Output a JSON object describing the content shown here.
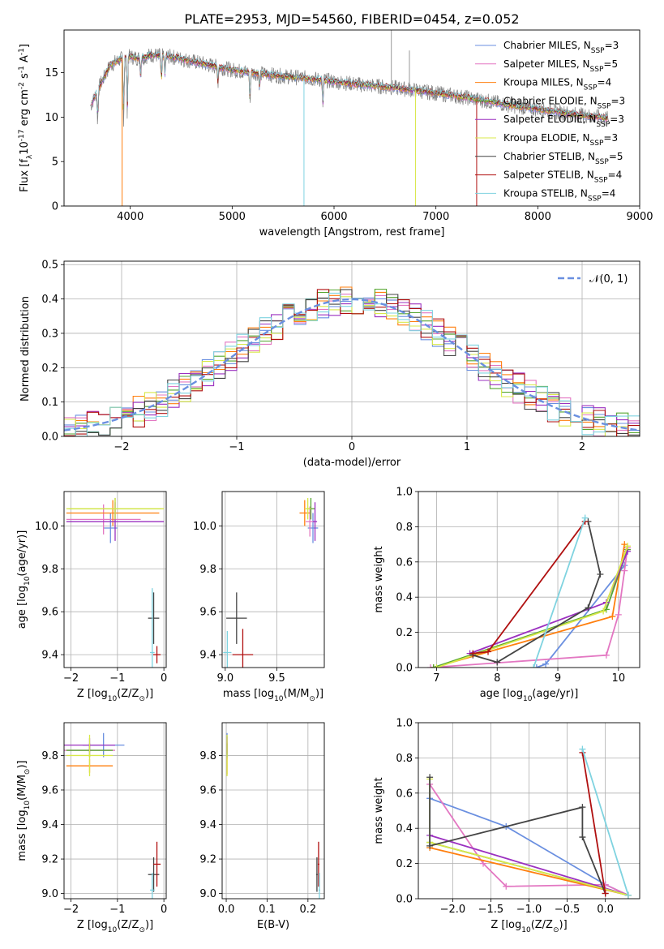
{
  "figure_title": "PLATE=2953, MJD=54560, FIBERID=0454, z=0.052",
  "colors": {
    "chabrier_miles": "#6a8fe0",
    "salpeter_miles": "#e377c2",
    "kroupa_miles": "#ff7f0e",
    "chabrier_elodie": "#55a630",
    "salpeter_elodie": "#9b30c0",
    "kroupa_elodie": "#d8e84a",
    "chabrier_stelib": "#444444",
    "salpeter_stelib": "#b01010",
    "kroupa_stelib": "#7fd3e0",
    "normal_curve": "#6a8fe0",
    "grid": "#b0b0b0"
  },
  "chart_data": [
    {
      "id": "spectrum",
      "type": "line",
      "xlabel": "wavelength [Angstrom, rest frame]",
      "ylabel": "Flux [f$_\\lambda$10$^{-17}$ erg cm$^{-2}$ s$^{-1}$ A$^{-1}$]",
      "xlim": [
        3350,
        9000
      ],
      "ylim": [
        0,
        19.8
      ],
      "xticks": [
        "4000",
        "5000",
        "6000",
        "7000",
        "8000",
        "9000"
      ],
      "yticks": [
        "0",
        "5",
        "10",
        "15"
      ],
      "grid": false,
      "legend_position": "top-right",
      "legend": [
        {
          "label": "Chabrier MILES, N$_{SSP}$=3",
          "color_key": "chabrier_miles"
        },
        {
          "label": "Salpeter MILES, N$_{SSP}$=5",
          "color_key": "salpeter_miles"
        },
        {
          "label": "Kroupa MILES, N$_{SSP}$=4",
          "color_key": "kroupa_miles"
        },
        {
          "label": "Chabrier ELODIE, N$_{SSP}$=3",
          "color_key": "chabrier_elodie"
        },
        {
          "label": "Salpeter ELODIE, N$_{SSP}$=3",
          "color_key": "salpeter_elodie"
        },
        {
          "label": "Kroupa ELODIE, N$_{SSP}$=3",
          "color_key": "kroupa_elodie"
        },
        {
          "label": "Chabrier STELIB, N$_{SSP}$=5",
          "color_key": "chabrier_stelib"
        },
        {
          "label": "Salpeter STELIB, N$_{SSP}$=4",
          "color_key": "salpeter_stelib"
        },
        {
          "label": "Kroupa STELIB, N$_{SSP}$=4",
          "color_key": "kroupa_stelib"
        }
      ],
      "continuum": {
        "x": [
          3620,
          3700,
          3800,
          3900,
          4000,
          4100,
          4200,
          4400,
          4600,
          4800,
          5000,
          5200,
          5500,
          5800,
          6000,
          6300,
          6600,
          7000,
          7300,
          7500,
          7800,
          8000,
          8300,
          8600,
          8700
        ],
        "y": [
          11.5,
          13.5,
          15.8,
          16.5,
          16.8,
          16.6,
          17.0,
          16.8,
          16.3,
          15.8,
          15.3,
          15.0,
          14.6,
          14.3,
          14.0,
          13.6,
          13.3,
          12.7,
          12.2,
          11.8,
          11.2,
          10.9,
          10.4,
          10.0,
          9.8
        ]
      },
      "observed_noise_amplitude": 0.9,
      "absorption_lines": [
        {
          "x": 3680,
          "depth": 3.5
        },
        {
          "x": 3935,
          "depth": 7.0
        },
        {
          "x": 3970,
          "depth": 6.0
        },
        {
          "x": 4102,
          "depth": 2.0
        },
        {
          "x": 4305,
          "depth": 3.0
        },
        {
          "x": 4340,
          "depth": 2.0
        },
        {
          "x": 4861,
          "depth": 1.8
        },
        {
          "x": 5175,
          "depth": 3.5
        },
        {
          "x": 5270,
          "depth": 1.6
        },
        {
          "x": 5890,
          "depth": 2.8
        }
      ],
      "artifacts": [
        {
          "x": 3920,
          "y_low": 0,
          "color_key": "kroupa_miles"
        },
        {
          "x": 5705,
          "y_low": 0,
          "color_key": "kroupa_stelib"
        },
        {
          "x": 6800,
          "y_low": 0,
          "color_key": "kroupa_elodie"
        },
        {
          "x": 7400,
          "y_low": 0,
          "color_key": "salpeter_stelib"
        }
      ],
      "emission_spikes": [
        {
          "x": 6563,
          "y_high": 19.8
        },
        {
          "x": 6740,
          "y_high": 17.5
        }
      ]
    },
    {
      "id": "residuals",
      "type": "histogram",
      "xlabel": "(data-model)/error",
      "ylabel": "Normed distribution",
      "xlim": [
        -2.5,
        2.5
      ],
      "ylim": [
        0,
        0.51
      ],
      "xticks": [
        "−2",
        "−1",
        "0",
        "1",
        "2"
      ],
      "yticks": [
        "0.0",
        "0.1",
        "0.2",
        "0.3",
        "0.4",
        "0.5"
      ],
      "grid": true,
      "legend_position": "top-right",
      "legend": [
        {
          "label": "𝒩(0, 1)",
          "color_key": "normal_curve"
        }
      ],
      "bin_width": 0.1,
      "bin_range": [
        -2.5,
        2.5
      ],
      "series_order": [
        "chabrier_miles",
        "salpeter_miles",
        "kroupa_miles",
        "chabrier_elodie",
        "salpeter_elodie",
        "kroupa_elodie",
        "chabrier_stelib",
        "salpeter_stelib",
        "kroupa_stelib"
      ],
      "curve": {
        "type": "normal",
        "mean": 0,
        "sigma": 1
      }
    },
    {
      "id": "age_vs_z",
      "type": "errorbar",
      "xlabel": "Z [log$_{10}$(Z/Z$_\\odot$)]",
      "ylabel": "age  [log$_{10}$($age/yr$)]",
      "xlim": [
        -2.15,
        0.05
      ],
      "ylim": [
        9.34,
        10.16
      ],
      "xticks": [
        {
          "v": -2,
          "t": "−2"
        },
        {
          "v": -1,
          "t": "−1"
        },
        {
          "v": 0,
          "t": "0"
        }
      ],
      "yticks": [
        {
          "v": 9.4,
          "t": "9.4"
        },
        {
          "v": 9.6,
          "t": "9.6"
        },
        {
          "v": 9.8,
          "t": "9.8"
        },
        {
          "v": 10.0,
          "t": "10.0"
        }
      ],
      "grid": true,
      "points": [
        {
          "c": "chabrier_miles",
          "x": -1.15,
          "y": 9.99,
          "xerr": 0.15,
          "yerr": 0.07
        },
        {
          "c": "salpeter_miles",
          "x": -1.3,
          "y": 10.03,
          "xerr": 0.8,
          "yerr": 0.07
        },
        {
          "c": "kroupa_miles",
          "x": -1.1,
          "y": 10.06,
          "xerr": 1.0,
          "yerr": 0.06
        },
        {
          "c": "chabrier_elodie",
          "x": -1.05,
          "y": 10.08,
          "xerr": 1.0,
          "yerr": 0.05
        },
        {
          "c": "salpeter_elodie",
          "x": -1.05,
          "y": 10.02,
          "xerr": 1.05,
          "yerr": 0.09
        },
        {
          "c": "kroupa_elodie",
          "x": -1.05,
          "y": 10.08,
          "xerr": 1.05,
          "yerr": 0.05
        },
        {
          "c": "chabrier_stelib",
          "x": -0.22,
          "y": 9.57,
          "xerr": 0.12,
          "yerr": 0.12
        },
        {
          "c": "salpeter_stelib",
          "x": -0.15,
          "y": 9.4,
          "xerr": 0.08,
          "yerr": 0.04
        },
        {
          "c": "kroupa_stelib",
          "x": -0.25,
          "y": 9.41,
          "xerr": 0.05,
          "yerr": 0.3
        }
      ]
    },
    {
      "id": "age_vs_mass",
      "type": "errorbar",
      "xlabel": "mass [log$_{10}$($M/M_\\odot$)]",
      "ylabel": "",
      "xlim": [
        8.97,
        9.96
      ],
      "ylim": [
        9.34,
        10.16
      ],
      "xticks": [
        {
          "v": 9.0,
          "t": "9.0"
        },
        {
          "v": 9.5,
          "t": "9.5"
        }
      ],
      "yticks": [
        {
          "v": 9.4,
          "t": "9.4"
        },
        {
          "v": 9.6,
          "t": "9.6"
        },
        {
          "v": 9.8,
          "t": "9.8"
        },
        {
          "v": 10.0,
          "t": "10.0"
        }
      ],
      "grid": true,
      "points": [
        {
          "c": "chabrier_miles",
          "x": 9.85,
          "y": 9.99,
          "xerr": 0.05,
          "yerr": 0.07
        },
        {
          "c": "salpeter_miles",
          "x": 9.82,
          "y": 10.02,
          "xerr": 0.04,
          "yerr": 0.07
        },
        {
          "c": "kroupa_miles",
          "x": 9.77,
          "y": 10.06,
          "xerr": 0.05,
          "yerr": 0.06
        },
        {
          "c": "chabrier_elodie",
          "x": 9.83,
          "y": 10.08,
          "xerr": 0.04,
          "yerr": 0.05
        },
        {
          "c": "salpeter_elodie",
          "x": 9.87,
          "y": 10.02,
          "xerr": 0.02,
          "yerr": 0.09
        },
        {
          "c": "kroupa_elodie",
          "x": 9.8,
          "y": 10.08,
          "xerr": 0.03,
          "yerr": 0.05
        },
        {
          "c": "chabrier_stelib",
          "x": 9.11,
          "y": 9.57,
          "xerr": 0.1,
          "yerr": 0.12
        },
        {
          "c": "salpeter_stelib",
          "x": 9.17,
          "y": 9.4,
          "xerr": 0.1,
          "yerr": 0.12
        },
        {
          "c": "kroupa_stelib",
          "x": 9.02,
          "y": 9.41,
          "xerr": 0.04,
          "yerr": 0.1
        }
      ]
    },
    {
      "id": "mass_weight_vs_age",
      "type": "line",
      "xlabel": "age  [log$_{10}$($age/yr$)]",
      "ylabel": "mass weight",
      "xlim": [
        6.7,
        10.35
      ],
      "ylim": [
        0,
        1.0
      ],
      "xticks": [
        {
          "v": 7,
          "t": "7"
        },
        {
          "v": 8,
          "t": "8"
        },
        {
          "v": 9,
          "t": "9"
        },
        {
          "v": 10,
          "t": "10"
        }
      ],
      "yticks": [
        {
          "v": 0.0,
          "t": "0.0"
        },
        {
          "v": 0.2,
          "t": "0.2"
        },
        {
          "v": 0.4,
          "t": "0.4"
        },
        {
          "v": 0.6,
          "t": "0.6"
        },
        {
          "v": 0.8,
          "t": "0.8"
        },
        {
          "v": 1.0,
          "t": "1.0"
        }
      ],
      "grid": true,
      "series": [
        {
          "c": "chabrier_miles",
          "x": [
            8.65,
            8.8,
            10.1
          ],
          "y": [
            0.0,
            0.02,
            0.58
          ]
        },
        {
          "c": "salpeter_miles",
          "x": [
            6.9,
            9.8,
            10.0,
            10.1,
            10.15
          ],
          "y": [
            0.0,
            0.07,
            0.3,
            0.55,
            0.68
          ]
        },
        {
          "c": "kroupa_miles",
          "x": [
            6.95,
            9.9,
            10.1
          ],
          "y": [
            0.0,
            0.29,
            0.7
          ]
        },
        {
          "c": "chabrier_elodie",
          "x": [
            6.95,
            9.8,
            10.15
          ],
          "y": [
            0.0,
            0.33,
            0.67
          ]
        },
        {
          "c": "salpeter_elodie",
          "x": [
            7.55,
            9.8,
            10.15
          ],
          "y": [
            0.08,
            0.37,
            0.66
          ]
        },
        {
          "c": "kroupa_elodie",
          "x": [
            7.0,
            9.75,
            10.15
          ],
          "y": [
            0.0,
            0.32,
            0.69
          ]
        },
        {
          "c": "chabrier_stelib",
          "x": [
            7.6,
            8.0,
            9.5,
            9.7,
            9.5
          ],
          "y": [
            0.07,
            0.03,
            0.34,
            0.53,
            0.83
          ]
        },
        {
          "c": "salpeter_stelib",
          "x": [
            7.6,
            7.85,
            9.45
          ],
          "y": [
            0.08,
            0.09,
            0.83
          ]
        },
        {
          "c": "kroupa_stelib",
          "x": [
            8.6,
            9.45
          ],
          "y": [
            0.0,
            0.85
          ]
        }
      ]
    },
    {
      "id": "mass_vs_z",
      "type": "errorbar",
      "xlabel": "Z [log$_{10}$(Z/Z$_\\odot$)]",
      "ylabel": "mass [log$_{10}$($M/M_\\odot$)]",
      "xlim": [
        -2.15,
        0.05
      ],
      "ylim": [
        8.97,
        9.99
      ],
      "xticks": [
        {
          "v": -2,
          "t": "−2"
        },
        {
          "v": -1,
          "t": "−1"
        },
        {
          "v": 0,
          "t": "0"
        }
      ],
      "yticks": [
        {
          "v": 9.0,
          "t": "9.0"
        },
        {
          "v": 9.2,
          "t": "9.2"
        },
        {
          "v": 9.4,
          "t": "9.4"
        },
        {
          "v": 9.6,
          "t": "9.6"
        },
        {
          "v": 9.8,
          "t": "9.8"
        }
      ],
      "grid": true,
      "points": [
        {
          "c": "chabrier_miles",
          "x": -1.3,
          "y": 9.86,
          "xerr": 0.45,
          "yerr": 0.07
        },
        {
          "c": "salpeter_miles",
          "x": -1.6,
          "y": 9.83,
          "xerr": 0.55,
          "yerr": 0.04
        },
        {
          "c": "kroupa_miles",
          "x": -1.6,
          "y": 9.74,
          "xerr": 0.5,
          "yerr": 0.04
        },
        {
          "c": "chabrier_elodie",
          "x": -1.6,
          "y": 9.83,
          "xerr": 0.5,
          "yerr": 0.04
        },
        {
          "c": "salpeter_elodie",
          "x": -1.6,
          "y": 9.86,
          "xerr": 0.55,
          "yerr": 0.04
        },
        {
          "c": "kroupa_elodie",
          "x": -1.6,
          "y": 9.8,
          "xerr": 0.5,
          "yerr": 0.12
        },
        {
          "c": "chabrier_stelib",
          "x": -0.22,
          "y": 9.11,
          "xerr": 0.12,
          "yerr": 0.1
        },
        {
          "c": "salpeter_stelib",
          "x": -0.15,
          "y": 9.17,
          "xerr": 0.08,
          "yerr": 0.13
        },
        {
          "c": "kroupa_stelib",
          "x": -0.25,
          "y": 9.02,
          "xerr": 0.05,
          "yerr": 0.1
        }
      ]
    },
    {
      "id": "mass_vs_ebv",
      "type": "errorbar",
      "xlabel": "E(B-V)",
      "ylabel": "",
      "xlim": [
        -0.01,
        0.24
      ],
      "ylim": [
        8.97,
        9.99
      ],
      "xticks": [
        {
          "v": 0.0,
          "t": "0.0"
        },
        {
          "v": 0.1,
          "t": "0.1"
        },
        {
          "v": 0.2,
          "t": "0.2"
        }
      ],
      "yticks": [
        {
          "v": 9.0,
          "t": "9.0"
        },
        {
          "v": 9.2,
          "t": "9.2"
        },
        {
          "v": 9.4,
          "t": "9.4"
        },
        {
          "v": 9.6,
          "t": "9.6"
        },
        {
          "v": 9.8,
          "t": "9.8"
        }
      ],
      "grid": true,
      "points": [
        {
          "c": "chabrier_miles",
          "x": 0.002,
          "y": 9.86,
          "xerr": 0.001,
          "yerr": 0.07
        },
        {
          "c": "salpeter_miles",
          "x": 0.002,
          "y": 9.83,
          "xerr": 0.001,
          "yerr": 0.05
        },
        {
          "c": "kroupa_miles",
          "x": 0.002,
          "y": 9.74,
          "xerr": 0.001,
          "yerr": 0.05
        },
        {
          "c": "chabrier_elodie",
          "x": 0.002,
          "y": 9.83,
          "xerr": 0.001,
          "yerr": 0.04
        },
        {
          "c": "salpeter_elodie",
          "x": 0.002,
          "y": 9.86,
          "xerr": 0.001,
          "yerr": 0.05
        },
        {
          "c": "kroupa_elodie",
          "x": 0.002,
          "y": 9.8,
          "xerr": 0.001,
          "yerr": 0.12
        },
        {
          "c": "chabrier_stelib",
          "x": 0.222,
          "y": 9.11,
          "xerr": 0.002,
          "yerr": 0.1
        },
        {
          "c": "salpeter_stelib",
          "x": 0.226,
          "y": 9.17,
          "xerr": 0.002,
          "yerr": 0.13
        },
        {
          "c": "kroupa_stelib",
          "x": 0.228,
          "y": 9.02,
          "xerr": 0.002,
          "yerr": 0.1
        }
      ]
    },
    {
      "id": "mass_weight_vs_z",
      "type": "line",
      "xlabel": "Z [log$_{10}$(Z/Z$_\\odot$)]",
      "ylabel": "mass weight",
      "xlim": [
        -2.45,
        0.45
      ],
      "ylim": [
        0,
        1.0
      ],
      "xticks": [
        {
          "v": -2.0,
          "t": "−2.0"
        },
        {
          "v": -1.5,
          "t": "−1.5"
        },
        {
          "v": -1.0,
          "t": "−1.0"
        },
        {
          "v": -0.5,
          "t": "−0.5"
        },
        {
          "v": 0.0,
          "t": "0.0"
        }
      ],
      "yticks": [
        {
          "v": 0.0,
          "t": "0.0"
        },
        {
          "v": 0.2,
          "t": "0.2"
        },
        {
          "v": 0.4,
          "t": "0.4"
        },
        {
          "v": 0.6,
          "t": "0.6"
        },
        {
          "v": 0.8,
          "t": "0.8"
        },
        {
          "v": 1.0,
          "t": "1.0"
        }
      ],
      "grid": true,
      "series": [
        {
          "c": "chabrier_miles",
          "x": [
            -2.3,
            -1.3,
            0.0,
            0.3
          ],
          "y": [
            0.57,
            0.41,
            0.08,
            0.02
          ]
        },
        {
          "c": "salpeter_miles",
          "x": [
            -2.3,
            -1.6,
            -1.3,
            0.0,
            0.3
          ],
          "y": [
            0.65,
            0.2,
            0.07,
            0.08,
            0.02
          ]
        },
        {
          "c": "kroupa_miles",
          "x": [
            -2.3,
            0.3
          ],
          "y": [
            0.29,
            0.02
          ]
        },
        {
          "c": "chabrier_elodie",
          "x": [
            -2.3,
            0.3
          ],
          "y": [
            0.32,
            0.02
          ]
        },
        {
          "c": "salpeter_elodie",
          "x": [
            -2.3,
            0.3
          ],
          "y": [
            0.36,
            0.02
          ]
        },
        {
          "c": "kroupa_elodie",
          "x": [
            -2.3,
            -2.3,
            0.3
          ],
          "y": [
            0.68,
            0.32,
            0.02
          ]
        },
        {
          "c": "chabrier_stelib",
          "x": [
            -2.3,
            -2.3,
            -0.3,
            -0.3,
            0.0
          ],
          "y": [
            0.69,
            0.3,
            0.52,
            0.35,
            0.03
          ]
        },
        {
          "c": "salpeter_stelib",
          "x": [
            -0.3,
            0.0
          ],
          "y": [
            0.83,
            0.03
          ]
        },
        {
          "c": "kroupa_stelib",
          "x": [
            -0.3,
            0.3
          ],
          "y": [
            0.85,
            0.02
          ]
        }
      ]
    }
  ]
}
